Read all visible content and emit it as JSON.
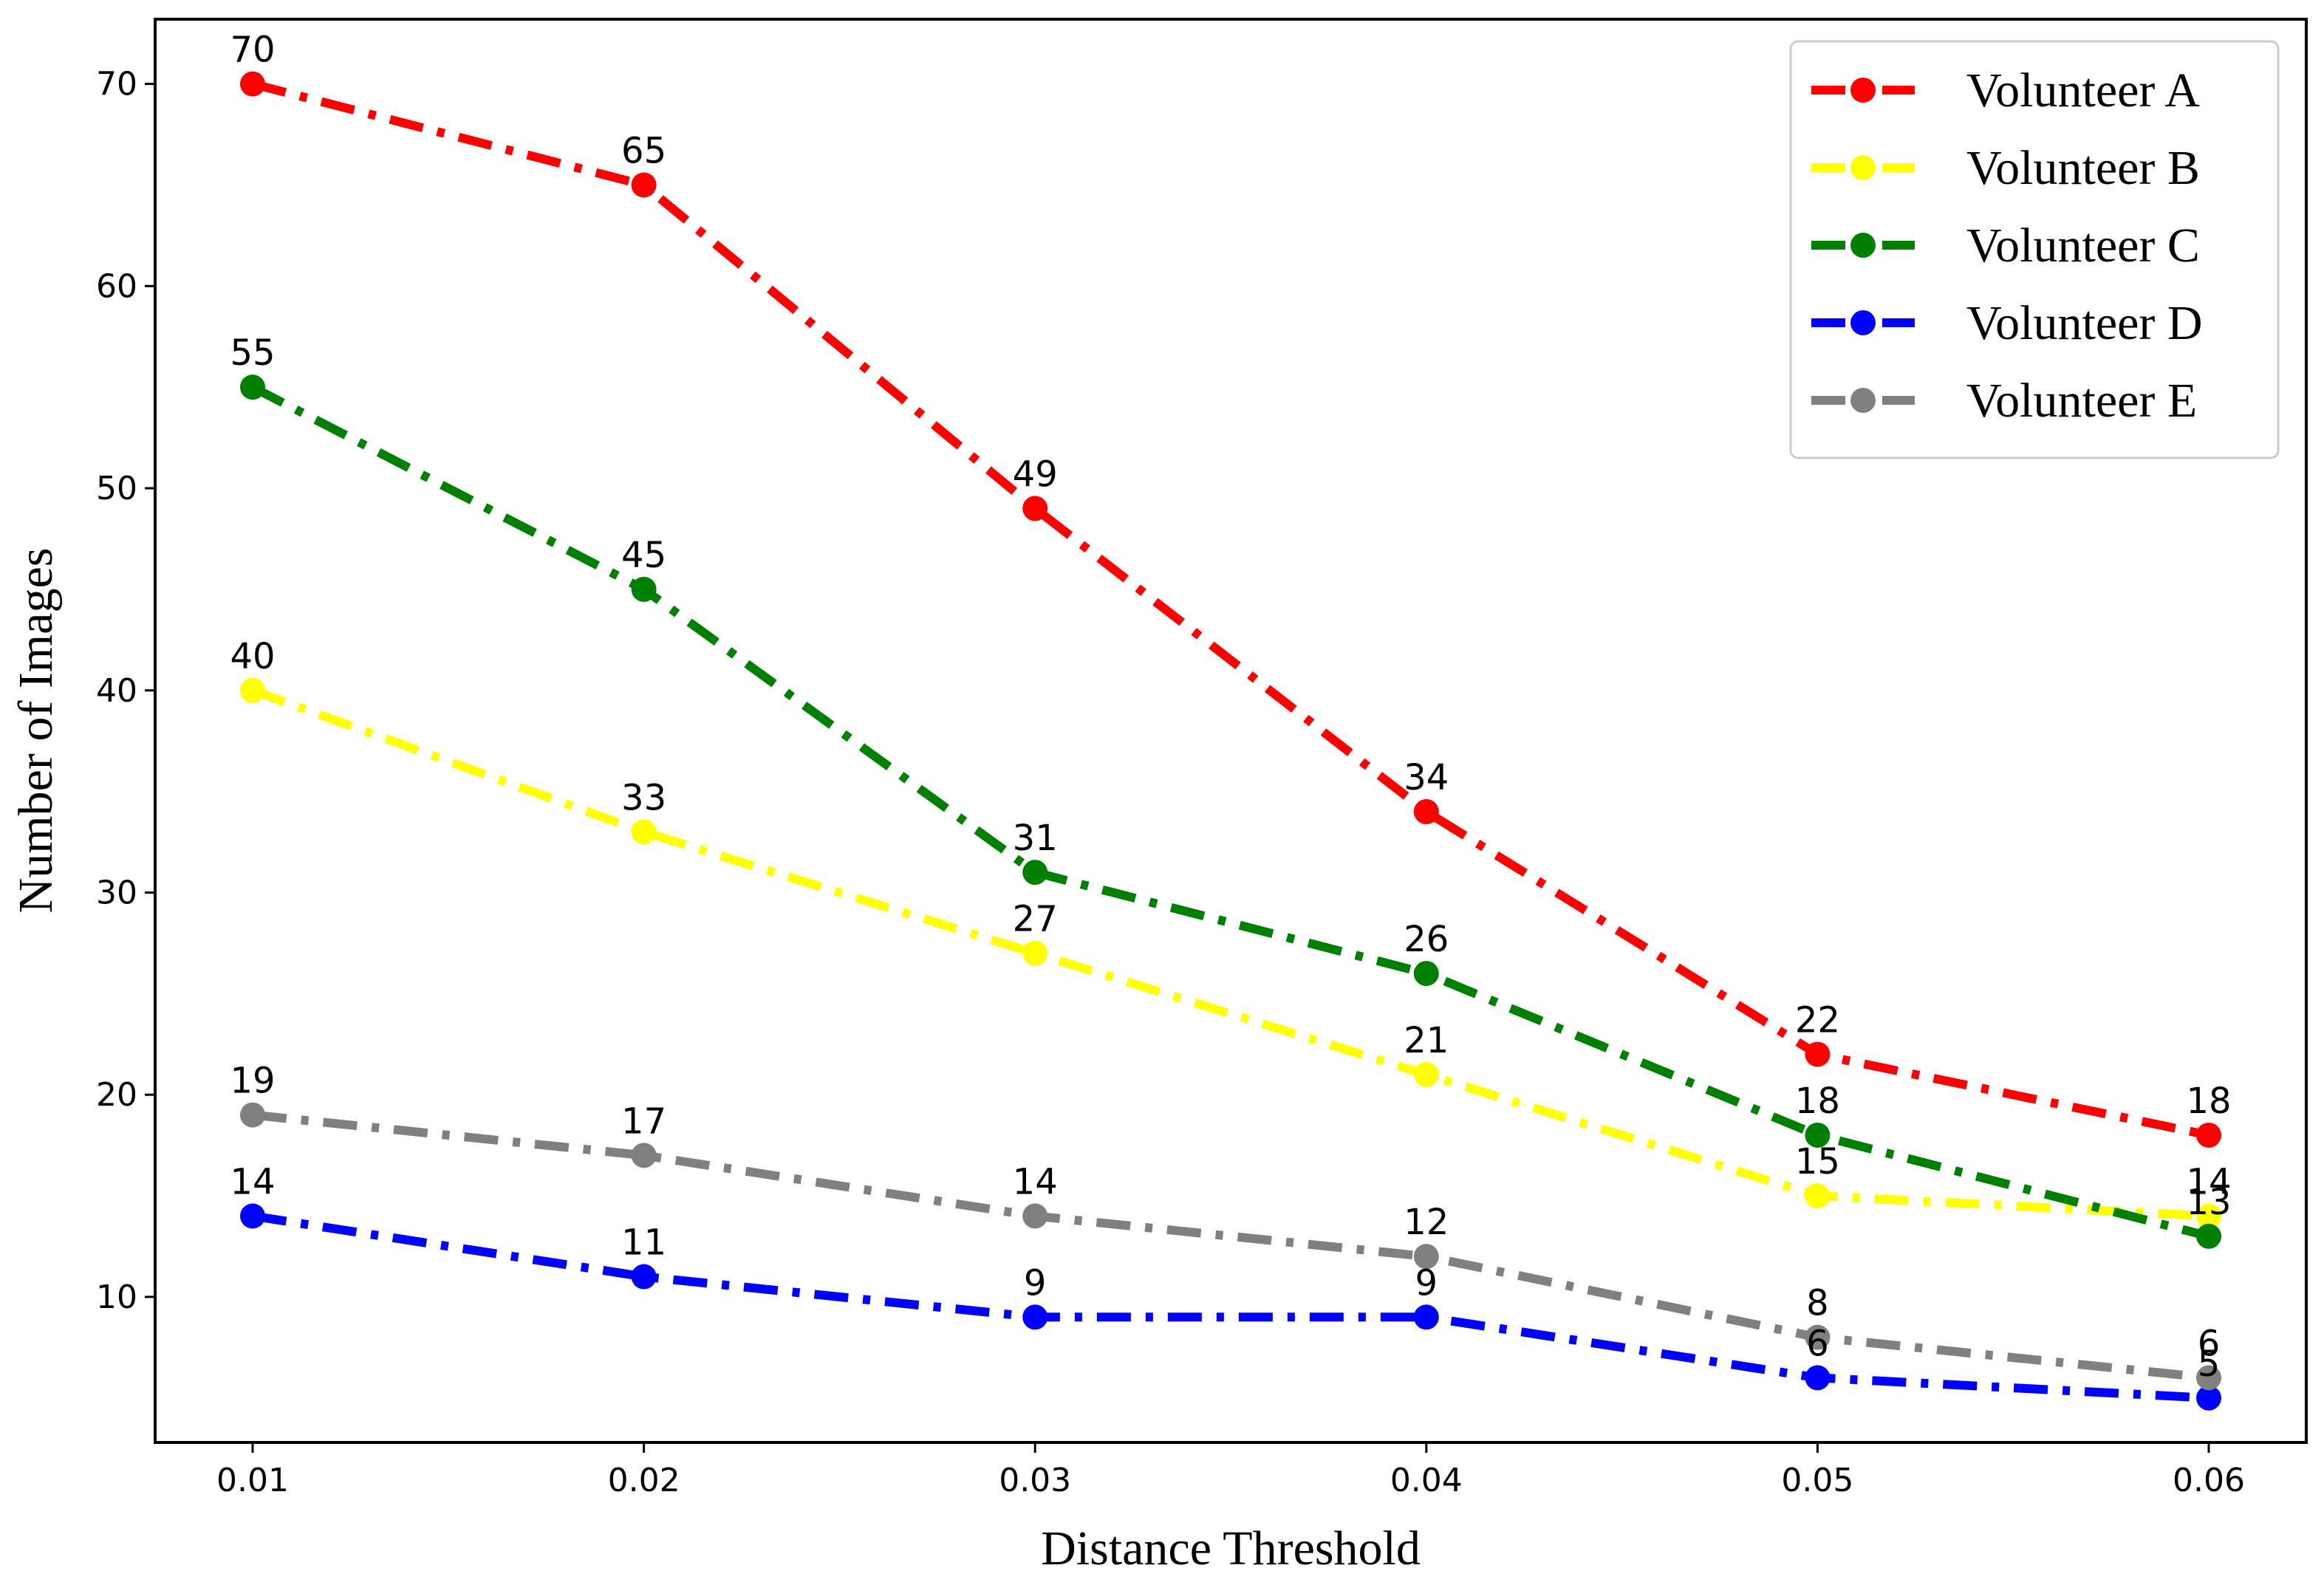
{
  "chart_data": {
    "type": "line",
    "title": "",
    "xlabel": "Distance Threshold",
    "ylabel": "Number of Images",
    "categories": [
      "0.01",
      "0.02",
      "0.03",
      "0.04",
      "0.05",
      "0.06"
    ],
    "yticks": [
      "10",
      "20",
      "30",
      "40",
      "50",
      "60",
      "70"
    ],
    "ylim": [
      2.8,
      73.2
    ],
    "grid": false,
    "legend_position": "top-right",
    "line_style": "dash-dot with circle markers",
    "series": [
      {
        "name": "Volunteer A",
        "color": "#ff0000",
        "values": [
          70,
          65,
          49,
          34,
          22,
          18
        ]
      },
      {
        "name": "Volunteer B",
        "color": "#ffff00",
        "values": [
          40,
          33,
          27,
          21,
          15,
          14
        ]
      },
      {
        "name": "Volunteer C",
        "color": "#008000",
        "values": [
          55,
          45,
          31,
          26,
          18,
          13
        ]
      },
      {
        "name": "Volunteer D",
        "color": "#0000ff",
        "values": [
          14,
          11,
          9,
          9,
          6,
          5
        ]
      },
      {
        "name": "Volunteer E",
        "color": "#808080",
        "values": [
          19,
          17,
          14,
          12,
          8,
          6
        ]
      }
    ]
  }
}
